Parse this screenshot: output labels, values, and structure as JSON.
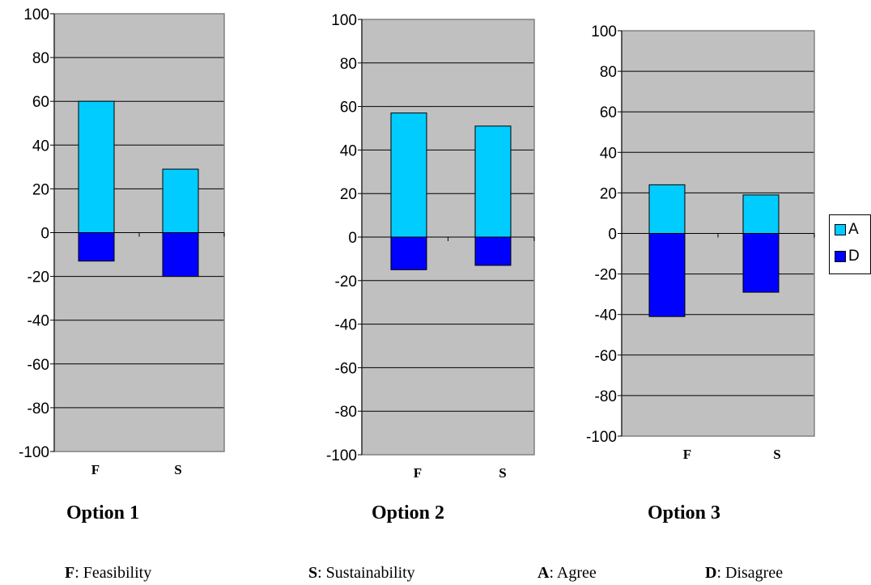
{
  "colors": {
    "agree": "#00CCFF",
    "disagree": "#0000FF",
    "plot_bg": "#C0C0C0"
  },
  "legend": [
    {
      "key": "A",
      "color": "#00CCFF"
    },
    {
      "key": "D",
      "color": "#0000FF"
    }
  ],
  "titles": [
    "Option 1",
    "Option 2",
    "Option 3"
  ],
  "footer": [
    {
      "key": "F",
      "text": ": Feasibility"
    },
    {
      "key": "S",
      "text": ": Sustainability"
    },
    {
      "key": "A",
      "text": ": Agree"
    },
    {
      "key": "D",
      "text": ": Disagree"
    }
  ],
  "chart_data": [
    {
      "type": "bar",
      "stacked": true,
      "title": "Option 1",
      "categories": [
        "F",
        "S"
      ],
      "series": [
        {
          "name": "A",
          "values": [
            60,
            29
          ]
        },
        {
          "name": "D",
          "values": [
            -13,
            -20
          ]
        }
      ],
      "ylim": [
        -100,
        100
      ],
      "yticks": [
        "100",
        "80",
        "60",
        "40",
        "20",
        "0",
        "-20",
        "-40",
        "-60",
        "-80",
        "-100"
      ],
      "grid": true
    },
    {
      "type": "bar",
      "stacked": true,
      "title": "Option 2",
      "categories": [
        "F",
        "S"
      ],
      "series": [
        {
          "name": "A",
          "values": [
            57,
            51
          ]
        },
        {
          "name": "D",
          "values": [
            -15,
            -13
          ]
        }
      ],
      "ylim": [
        -100,
        100
      ],
      "yticks": [
        "100",
        "80",
        "60",
        "40",
        "20",
        "0",
        "-20",
        "-40",
        "-60",
        "-80",
        "-100"
      ],
      "grid": true
    },
    {
      "type": "bar",
      "stacked": true,
      "title": "Option 3",
      "categories": [
        "F",
        "S"
      ],
      "series": [
        {
          "name": "A",
          "values": [
            24,
            19
          ]
        },
        {
          "name": "D",
          "values": [
            -41,
            -29
          ]
        }
      ],
      "ylim": [
        -100,
        100
      ],
      "yticks": [
        "100",
        "80",
        "60",
        "40",
        "20",
        "0",
        "-20",
        "-40",
        "-60",
        "-80",
        "-100"
      ],
      "grid": true
    }
  ]
}
